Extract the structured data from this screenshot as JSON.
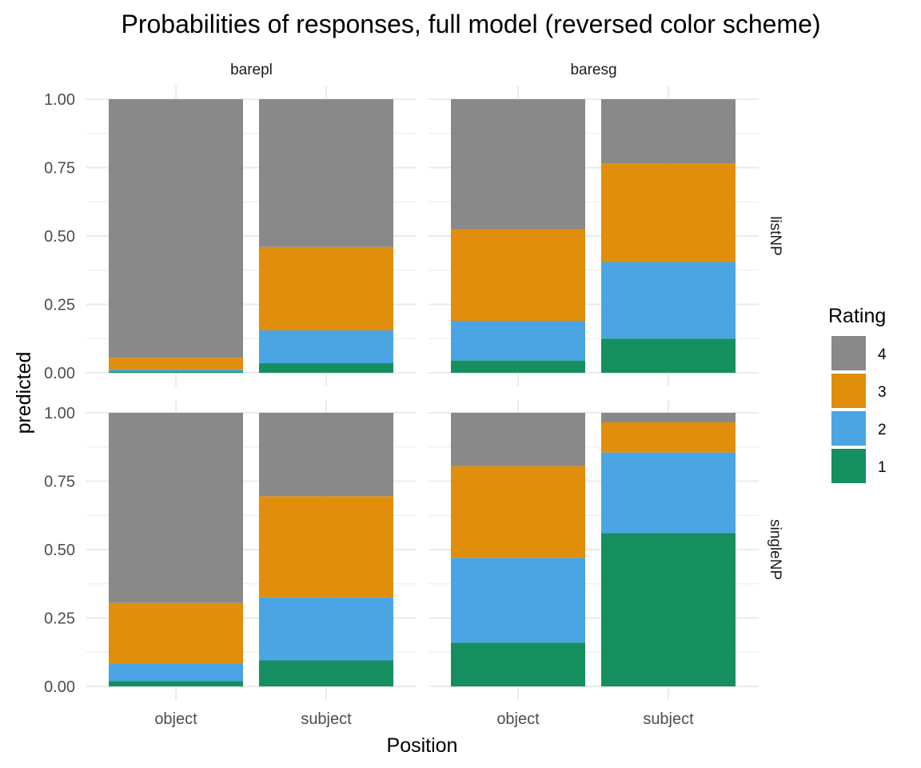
{
  "chart_data": {
    "type": "bar",
    "stacked": true,
    "title": "Probabilities of responses, full model (reversed color scheme)",
    "xlabel": "Position",
    "ylabel": "predicted",
    "ylim": [
      0,
      1
    ],
    "y_ticks": [
      "0.00",
      "0.25",
      "0.50",
      "0.75",
      "1.00"
    ],
    "categories": [
      "object",
      "subject"
    ],
    "facet_columns": [
      "barepl",
      "baresg"
    ],
    "facet_rows": [
      "listNP",
      "singleNP"
    ],
    "legend": {
      "title": "Rating",
      "entries": [
        {
          "label": "4",
          "color": "#898989"
        },
        {
          "label": "3",
          "color": "#E08E0B"
        },
        {
          "label": "2",
          "color": "#4AA5E2"
        },
        {
          "label": "1",
          "color": "#158F60"
        }
      ]
    },
    "rating_order": [
      "1",
      "2",
      "3",
      "4"
    ],
    "colors": {
      "1": "#158F60",
      "2": "#4AA5E2",
      "3": "#E08E0B",
      "4": "#898989"
    },
    "panels": [
      {
        "row": "listNP",
        "col": "barepl",
        "bars": [
          {
            "category": "object",
            "values": [
              0.005,
              0.007,
              0.043,
              0.945
            ]
          },
          {
            "category": "subject",
            "values": [
              0.035,
              0.12,
              0.305,
              0.54
            ]
          }
        ]
      },
      {
        "row": "listNP",
        "col": "baresg",
        "bars": [
          {
            "category": "object",
            "values": [
              0.045,
              0.145,
              0.335,
              0.475
            ]
          },
          {
            "category": "subject",
            "values": [
              0.125,
              0.28,
              0.36,
              0.235
            ]
          }
        ]
      },
      {
        "row": "singleNP",
        "col": "barepl",
        "bars": [
          {
            "category": "object",
            "values": [
              0.02,
              0.065,
              0.22,
              0.695
            ]
          },
          {
            "category": "subject",
            "values": [
              0.095,
              0.23,
              0.37,
              0.305
            ]
          }
        ]
      },
      {
        "row": "singleNP",
        "col": "baresg",
        "bars": [
          {
            "category": "object",
            "values": [
              0.16,
              0.31,
              0.335,
              0.195
            ]
          },
          {
            "category": "subject",
            "values": [
              0.56,
              0.295,
              0.11,
              0.035
            ]
          }
        ]
      }
    ]
  }
}
